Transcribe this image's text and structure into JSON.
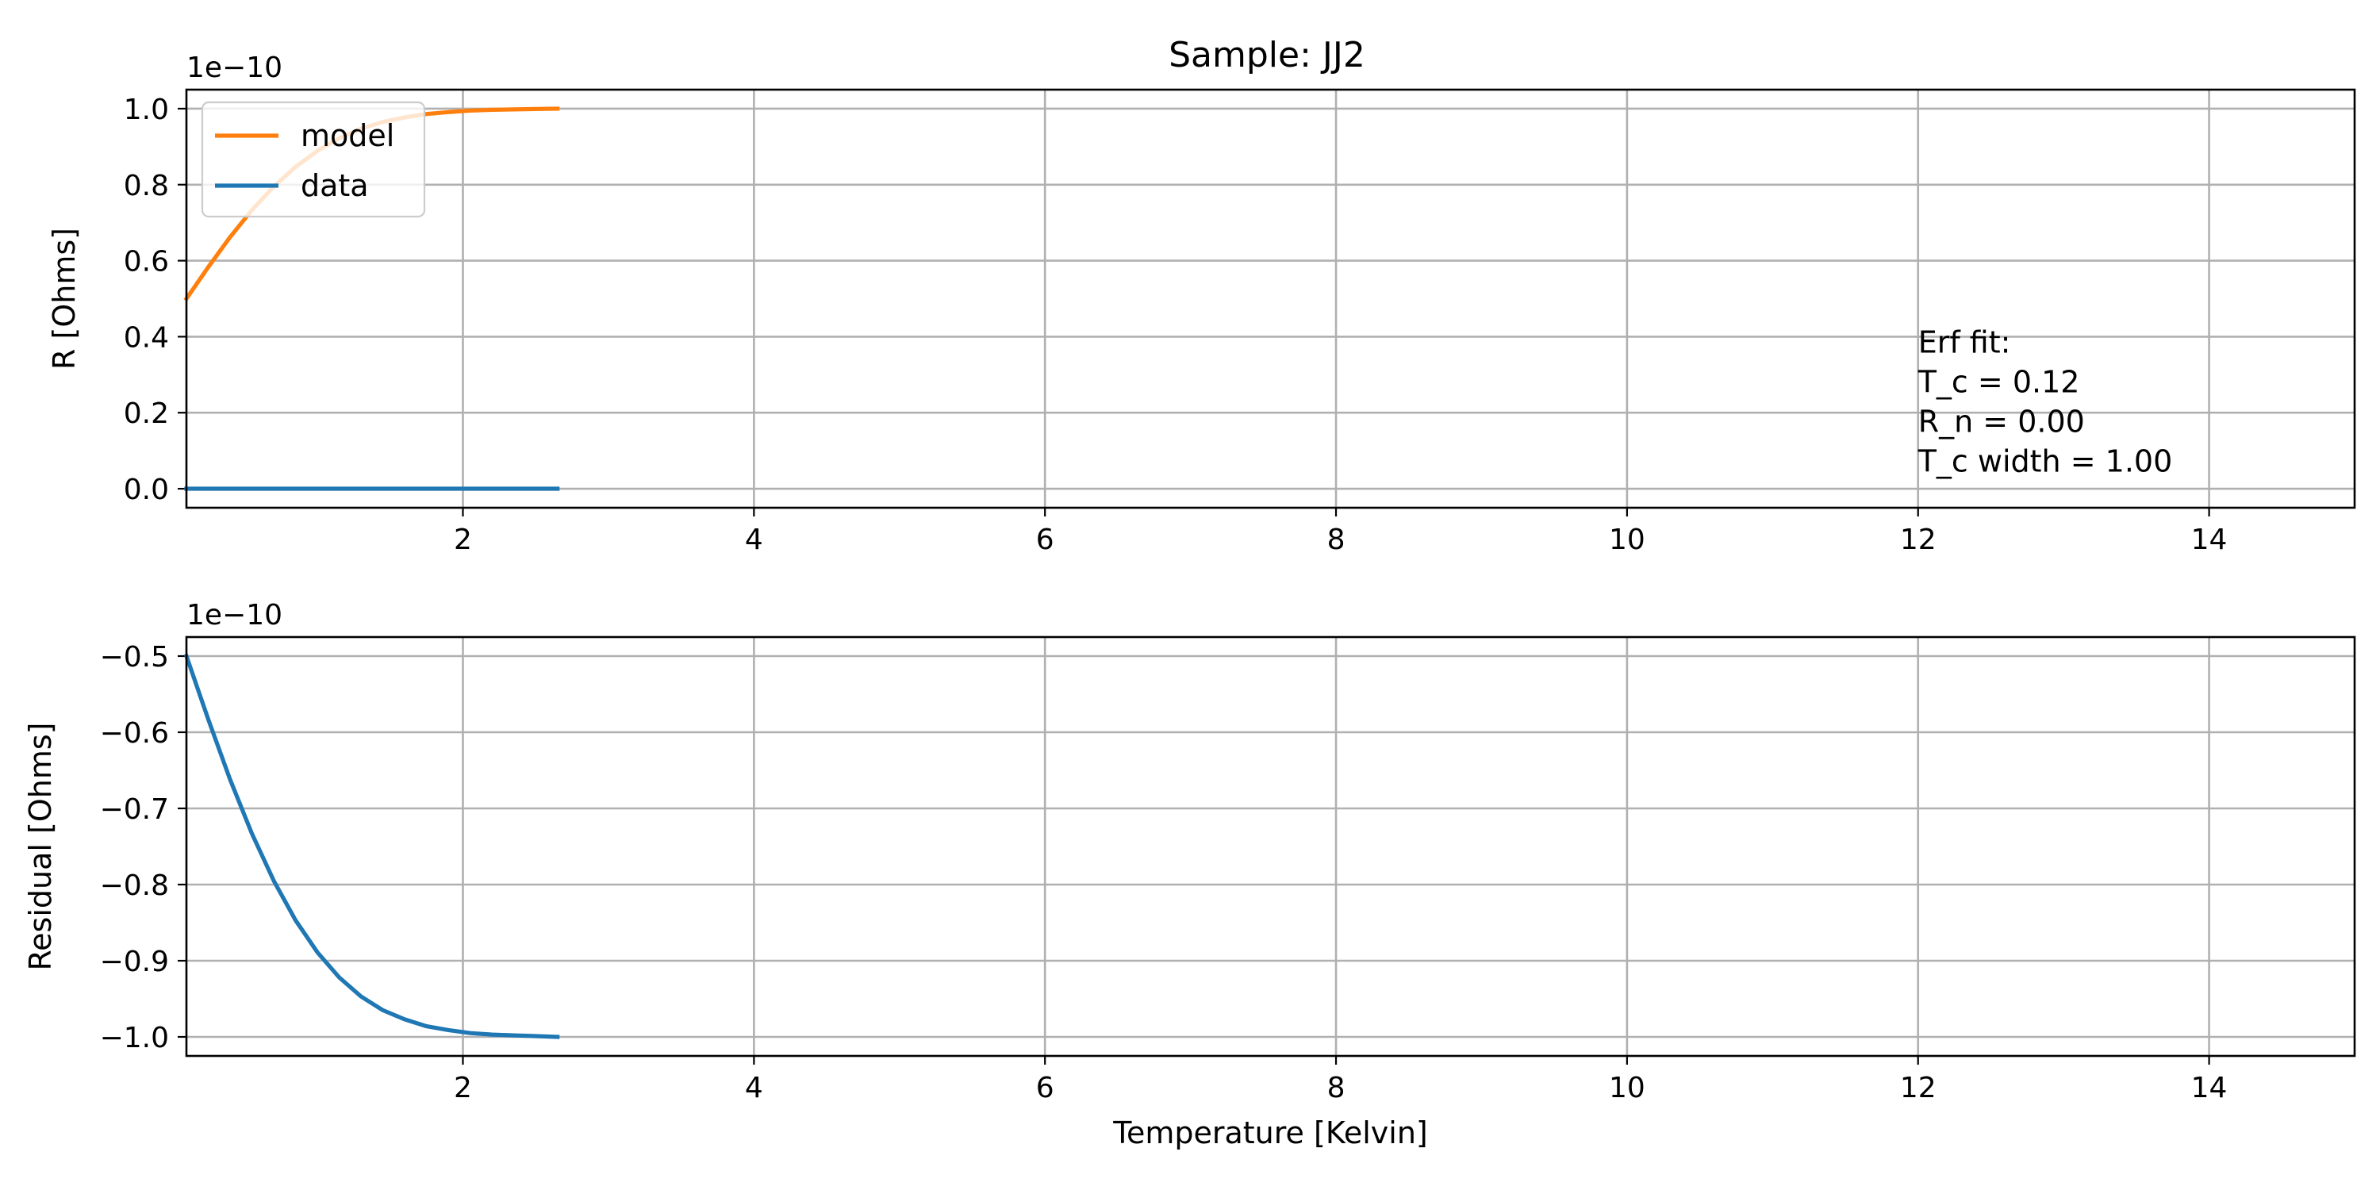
{
  "figure": {
    "title": "Sample: JJ2"
  },
  "chart_data": [
    {
      "type": "line",
      "panel": "top",
      "ylabel": "R [Ohms]",
      "xlabel": "",
      "offset_text": "1e−10",
      "xlim": [
        0.1,
        15.0
      ],
      "ylim": [
        -0.05,
        1.05
      ],
      "xticks": [
        2,
        4,
        6,
        8,
        10,
        12,
        14
      ],
      "xtick_labels": [
        "2",
        "4",
        "6",
        "8",
        "10",
        "12",
        "14"
      ],
      "yticks": [
        0.0,
        0.2,
        0.4,
        0.6,
        0.8,
        1.0
      ],
      "ytick_labels": [
        "0.0",
        "0.2",
        "0.4",
        "0.6",
        "0.8",
        "1.0"
      ],
      "grid": true,
      "legend": {
        "placement": "upper-left",
        "entries": [
          "model",
          "data"
        ]
      },
      "series": [
        {
          "name": "model",
          "color": "#ff7f0e",
          "x": [
            0.1,
            0.25,
            0.4,
            0.55,
            0.7,
            0.85,
            1.0,
            1.15,
            1.3,
            1.45,
            1.6,
            1.75,
            1.9,
            2.05,
            2.2,
            2.35,
            2.5,
            2.65
          ],
          "y": [
            0.5,
            0.583,
            0.662,
            0.733,
            0.795,
            0.847,
            0.889,
            0.922,
            0.947,
            0.965,
            0.977,
            0.986,
            0.991,
            0.995,
            0.997,
            0.998,
            0.999,
            1.0
          ]
        },
        {
          "name": "data",
          "color": "#1f77b4",
          "x": [
            0.1,
            2.65
          ],
          "y": [
            0.0,
            0.0
          ]
        }
      ],
      "annotation": {
        "lines": [
          "Erf fit:",
          "T_c = 0.12",
          "R_n = 0.00",
          "T_c width = 1.00"
        ],
        "x": 12.0,
        "y": 0.4
      }
    },
    {
      "type": "line",
      "panel": "bottom",
      "ylabel": "Residual [Ohms]",
      "xlabel": "Temperature [Kelvin]",
      "offset_text": "1e−10",
      "xlim": [
        0.1,
        15.0
      ],
      "ylim": [
        -1.025,
        -0.475
      ],
      "xticks": [
        2,
        4,
        6,
        8,
        10,
        12,
        14
      ],
      "xtick_labels": [
        "2",
        "4",
        "6",
        "8",
        "10",
        "12",
        "14"
      ],
      "yticks": [
        -1.0,
        -0.9,
        -0.8,
        -0.7,
        -0.6,
        -0.5
      ],
      "ytick_labels": [
        "−1.0",
        "−0.9",
        "−0.8",
        "−0.7",
        "−0.6",
        "−0.5"
      ],
      "grid": true,
      "series": [
        {
          "color": "#1f77b4",
          "x": [
            0.1,
            0.25,
            0.4,
            0.55,
            0.7,
            0.85,
            1.0,
            1.15,
            1.3,
            1.45,
            1.6,
            1.75,
            1.9,
            2.05,
            2.2,
            2.35,
            2.5,
            2.65
          ],
          "y": [
            -0.5,
            -0.583,
            -0.662,
            -0.733,
            -0.795,
            -0.847,
            -0.889,
            -0.922,
            -0.947,
            -0.965,
            -0.977,
            -0.986,
            -0.991,
            -0.995,
            -0.997,
            -0.998,
            -0.999,
            -1.0
          ]
        }
      ]
    }
  ]
}
